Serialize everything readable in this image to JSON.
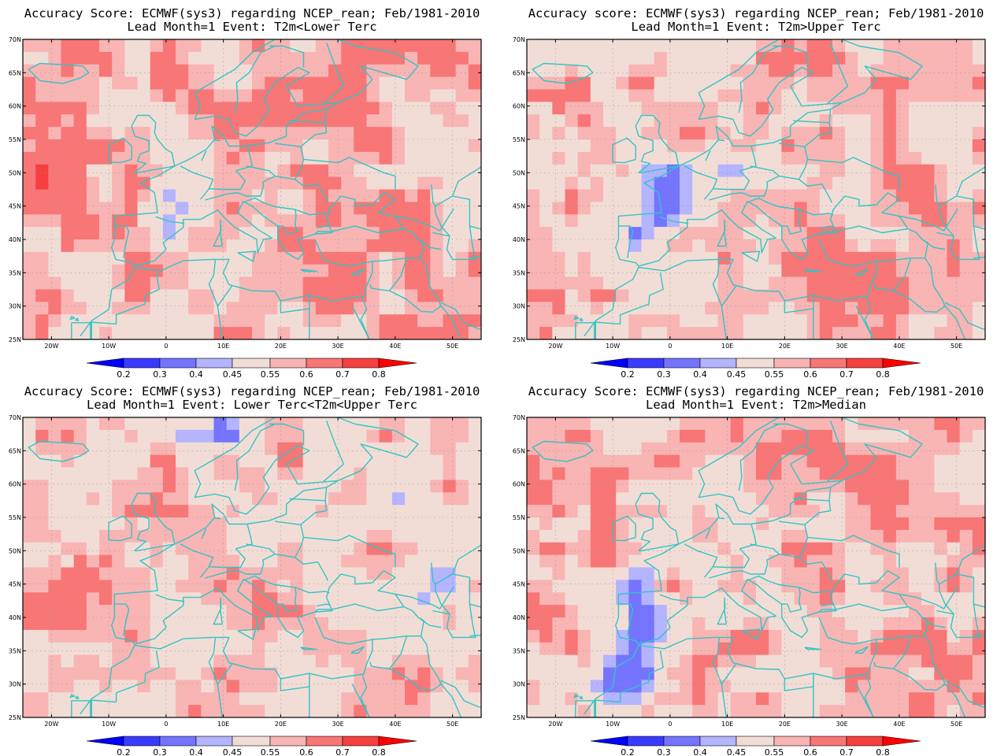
{
  "panels": [
    {
      "title_line1": "Accuracy Score: ECMWF(sys3) regarding NCEP_rean; Feb/1981-2010",
      "title_line2": "Lead Month=1 Event: T2m<Lower Terc",
      "variant": 0
    },
    {
      "title_line1": "Accuracy score: ECMWF(sys3) regarding NCEP_rean; Feb/1981-2010",
      "title_line2": "Lead Month=1 Event: T2m>Upper Terc",
      "variant": 1
    },
    {
      "title_line1": "Accuracy Score: ECMWF(sys3) regarding NCEP_rean; Feb/1981-2010",
      "title_line2": "Lead Month=1 Event: Lower Terc<T2m<Upper Terc",
      "variant": 2
    },
    {
      "title_line1": "Accuracy Score: ECMWF(sys3) regarding NCEP_rean; Feb/1981-2010",
      "title_line2": "Lead Month=1 Event: T2m>Median",
      "variant": 3
    }
  ],
  "lat_ticks": [
    "70N",
    "65N",
    "60N",
    "55N",
    "50N",
    "45N",
    "40N",
    "35N",
    "30N",
    "25N"
  ],
  "lon_ticks": [
    "20W",
    "10W",
    "0",
    "10E",
    "20E",
    "30E",
    "40E",
    "50E"
  ],
  "colorbar": {
    "labels": [
      "0.2",
      "0.3",
      "0.4",
      "0.45",
      "0.55",
      "0.6",
      "0.7",
      "0.8"
    ],
    "colors": [
      "#0000ff",
      "#3b3bff",
      "#7474ff",
      "#b4b4ff",
      "#f2ddd6",
      "#f9b4b4",
      "#f87676",
      "#f64040",
      "#ff0000"
    ]
  },
  "colors": {
    "coast": "#33c4c4",
    "grid": "#999999"
  }
}
